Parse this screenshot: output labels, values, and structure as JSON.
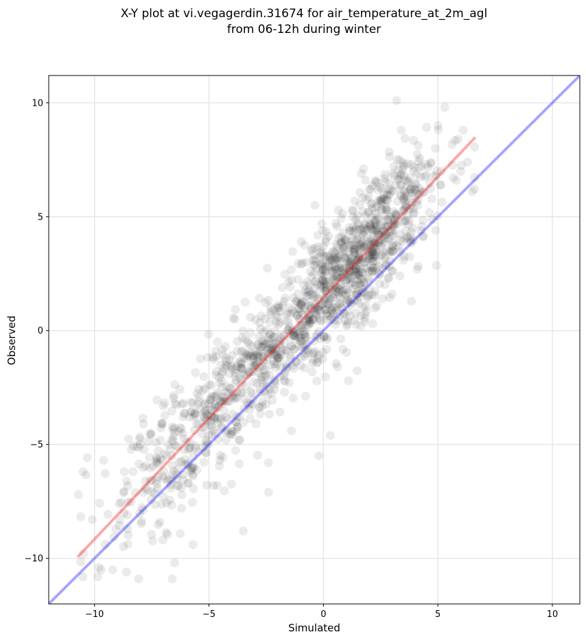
{
  "chart_data": {
    "type": "scatter",
    "title_lines": [
      "X-Y plot at vi.vegagerdin.31674 for air_temperature_at_2m_agl",
      "from 06-12h during winter"
    ],
    "xlabel": "Simulated",
    "ylabel": "Observed",
    "xlim": [
      -12,
      11.2
    ],
    "ylim": [
      -12,
      11.2
    ],
    "xticks": [
      -10,
      -5,
      0,
      5,
      10
    ],
    "yticks": [
      -10,
      -5,
      0,
      5,
      10
    ],
    "tick_labels": {
      "x": [
        "−10",
        "−5",
        "0",
        "5",
        "10"
      ],
      "y": [
        "−10",
        "−5",
        "0",
        "5",
        "10"
      ]
    },
    "grid": true,
    "point_color": "#000000",
    "point_alpha": 0.08,
    "point_count": 1500,
    "points_sample": [
      [
        -10.7,
        -7.2
      ],
      [
        -10.5,
        -6.2
      ],
      [
        -10.1,
        -8.3
      ],
      [
        -9.2,
        -10.5
      ],
      [
        -8.6,
        -10.6
      ],
      [
        -9.6,
        -5.7
      ],
      [
        -8.7,
        -6.2
      ],
      [
        -8.0,
        -5.0
      ],
      [
        -7.3,
        -5.8
      ],
      [
        -7.0,
        -3.3
      ],
      [
        -6.6,
        -10.9
      ],
      [
        -6.5,
        -10.2
      ],
      [
        -6.2,
        -7.8
      ],
      [
        -5.7,
        -9.4
      ],
      [
        -5.6,
        -3.7
      ],
      [
        -5.1,
        -4.9
      ],
      [
        -4.8,
        -6.8
      ],
      [
        -4.1,
        -3.1
      ],
      [
        -3.5,
        -8.8
      ],
      [
        -3.2,
        -1.1
      ],
      [
        -2.4,
        -5.8
      ],
      [
        -2.4,
        -7.1
      ],
      [
        -1.7,
        -2.7
      ],
      [
        -1.4,
        -4.4
      ],
      [
        -0.7,
        0.5
      ],
      [
        -0.2,
        -5.5
      ],
      [
        0.0,
        1.9
      ],
      [
        0.3,
        -4.6
      ],
      [
        0.5,
        3.1
      ],
      [
        1.1,
        -2.2
      ],
      [
        1.3,
        3.6
      ],
      [
        1.8,
        0.4
      ],
      [
        2.2,
        4.2
      ],
      [
        2.6,
        1.4
      ],
      [
        3.0,
        6.9
      ],
      [
        3.2,
        10.1
      ],
      [
        3.4,
        8.8
      ],
      [
        3.5,
        5.8
      ],
      [
        4.1,
        2.7
      ],
      [
        4.5,
        7.3
      ],
      [
        4.9,
        4.4
      ],
      [
        5.0,
        9.0
      ],
      [
        5.3,
        9.8
      ],
      [
        5.8,
        6.6
      ],
      [
        6.1,
        8.8
      ],
      [
        6.5,
        6.1
      ],
      [
        6.3,
        7.4
      ],
      [
        -4.9,
        -2.4
      ],
      [
        -1.9,
        -1.2
      ],
      [
        2.9,
        5.0
      ]
    ],
    "lines": [
      {
        "kind": "regression",
        "color": "#ff0000",
        "opacity": 0.35,
        "x": [
          -10.7,
          6.6
        ],
        "y": [
          -9.9,
          8.45
        ]
      },
      {
        "kind": "identity",
        "color": "#0000ff",
        "opacity": 0.35,
        "x": [
          -12,
          11.2
        ],
        "y": [
          -12,
          11.2
        ]
      }
    ]
  }
}
